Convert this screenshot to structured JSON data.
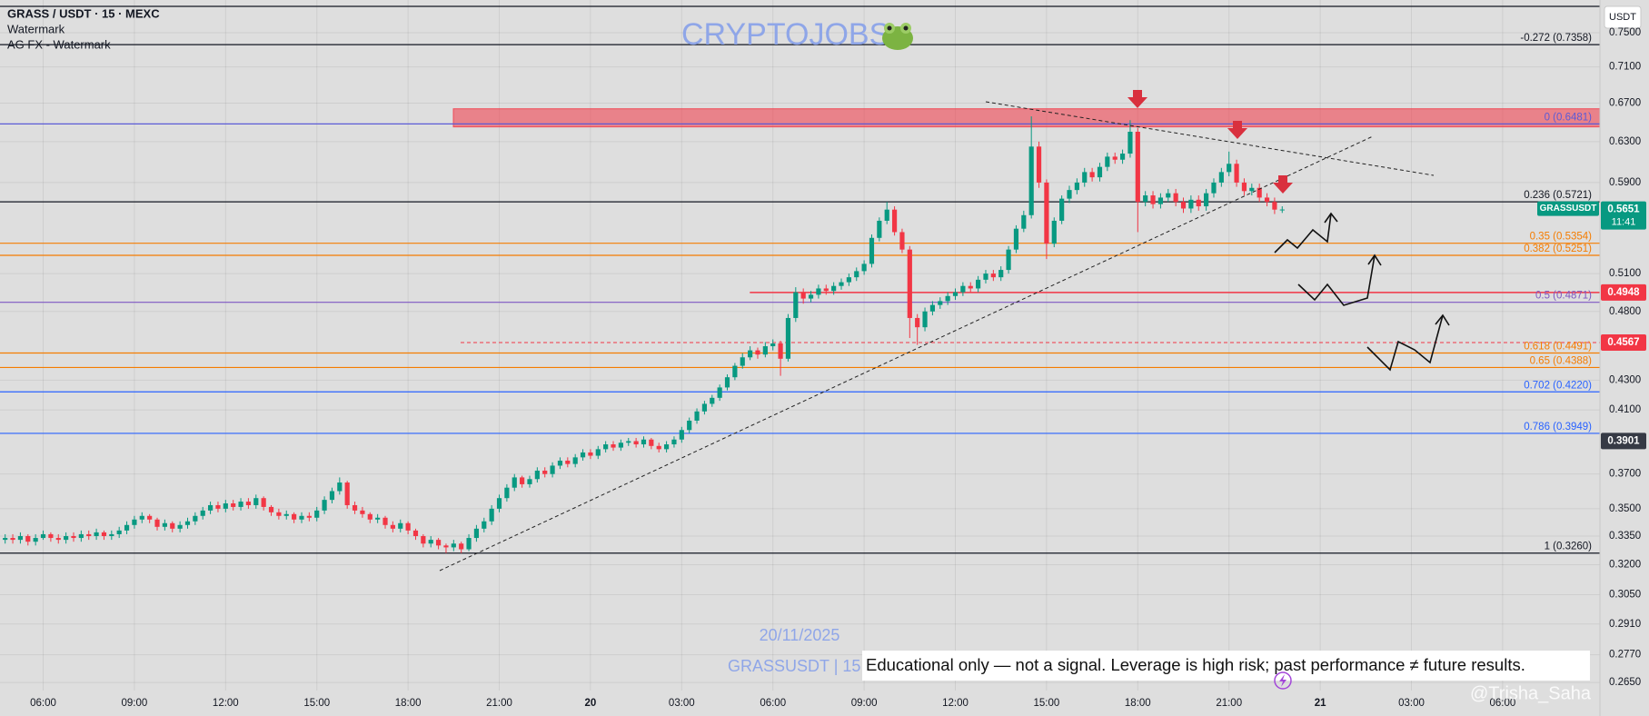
{
  "header": {
    "symbol_line": "GRASS / USDT · 15 · MEXC",
    "indicators": [
      "Watermark",
      "AG FX - Watermark"
    ]
  },
  "currency_button": "USDT",
  "watermark": {
    "brand": "CRYPTOJOBS",
    "date": "20/11/2025",
    "ticker": "GRASSUSDT | 15",
    "handle": "@Trisha_Saha"
  },
  "disclaimer": "Educational only — not a signal. Leverage is high risk; past performance ≠ future results.",
  "chart_data": {
    "type": "candlestick",
    "up_color": "#089981",
    "down_color": "#f23645",
    "x": [
      4.75,
      5,
      5.25,
      5.5,
      5.75,
      6,
      6.25,
      6.5,
      6.75,
      7,
      7.25,
      7.5,
      7.75,
      8,
      8.25,
      8.5,
      8.75,
      9,
      9.25,
      9.5,
      9.75,
      10,
      10.25,
      10.5,
      10.75,
      11,
      11.25,
      11.5,
      11.75,
      12,
      12.25,
      12.5,
      12.75,
      13,
      13.25,
      13.5,
      13.75,
      14,
      14.25,
      14.5,
      14.75,
      15,
      15.25,
      15.5,
      15.75,
      16,
      16.25,
      16.5,
      16.75,
      17,
      17.25,
      17.5,
      17.75,
      18,
      18.25,
      18.5,
      18.75,
      19,
      19.25,
      19.5,
      19.75,
      20,
      20.25,
      20.5,
      20.75,
      21,
      21.25,
      21.5,
      21.75,
      22,
      22.25,
      22.5,
      22.75,
      23,
      23.25,
      23.5,
      23.75,
      24,
      24.25,
      24.5,
      24.75,
      25,
      25.25,
      25.5,
      25.75,
      26,
      26.25,
      26.5,
      26.75,
      27,
      27.25,
      27.5,
      27.75,
      28,
      28.25,
      28.5,
      28.75,
      29,
      29.25,
      29.5,
      29.75,
      30,
      30.25,
      30.5,
      30.75,
      31,
      31.25,
      31.5,
      31.75,
      32,
      32.25,
      32.5,
      32.75,
      33,
      33.25,
      33.5,
      33.75,
      34,
      34.25,
      34.5,
      34.75,
      35,
      35.25,
      35.5,
      35.75,
      36,
      36.25,
      36.5,
      36.75,
      37,
      37.25,
      37.5,
      37.75,
      38,
      38.25,
      38.5,
      38.75,
      39,
      39.25,
      39.5,
      39.75,
      40,
      40.25,
      40.5,
      40.75,
      41,
      41.25,
      41.5,
      41.75,
      42,
      42.25,
      42.5,
      42.75,
      43,
      43.25,
      43.5,
      43.75,
      44,
      44.25,
      44.5,
      44.75,
      45,
      45.25,
      45.5,
      45.75,
      46,
      46.25,
      46.5,
      46.75
    ],
    "open": [
      0.333,
      0.334,
      0.333,
      0.335,
      0.332,
      0.334,
      0.336,
      0.334,
      0.333,
      0.335,
      0.334,
      0.336,
      0.335,
      0.337,
      0.335,
      0.336,
      0.338,
      0.341,
      0.344,
      0.346,
      0.344,
      0.34,
      0.342,
      0.339,
      0.341,
      0.343,
      0.346,
      0.349,
      0.352,
      0.35,
      0.353,
      0.351,
      0.354,
      0.352,
      0.356,
      0.351,
      0.348,
      0.346,
      0.347,
      0.344,
      0.346,
      0.345,
      0.349,
      0.355,
      0.36,
      0.365,
      0.352,
      0.349,
      0.347,
      0.344,
      0.345,
      0.341,
      0.339,
      0.342,
      0.338,
      0.335,
      0.331,
      0.333,
      0.33,
      0.329,
      0.331,
      0.328,
      0.334,
      0.339,
      0.343,
      0.35,
      0.356,
      0.362,
      0.368,
      0.364,
      0.367,
      0.372,
      0.37,
      0.375,
      0.378,
      0.376,
      0.38,
      0.383,
      0.381,
      0.385,
      0.388,
      0.386,
      0.389,
      0.39,
      0.388,
      0.391,
      0.387,
      0.385,
      0.388,
      0.391,
      0.397,
      0.403,
      0.409,
      0.414,
      0.418,
      0.425,
      0.432,
      0.44,
      0.446,
      0.451,
      0.448,
      0.454,
      0.456,
      0.445,
      0.475,
      0.495,
      0.49,
      0.493,
      0.498,
      0.496,
      0.5,
      0.503,
      0.507,
      0.512,
      0.518,
      0.54,
      0.555,
      0.565,
      0.545,
      0.53,
      0.475,
      0.468,
      0.48,
      0.485,
      0.488,
      0.492,
      0.495,
      0.5,
      0.498,
      0.505,
      0.51,
      0.507,
      0.513,
      0.53,
      0.548,
      0.56,
      0.625,
      0.59,
      0.535,
      0.555,
      0.575,
      0.583,
      0.59,
      0.6,
      0.595,
      0.605,
      0.615,
      0.612,
      0.618,
      0.64,
      0.572,
      0.578,
      0.57,
      0.576,
      0.58,
      0.572,
      0.566,
      0.574,
      0.568,
      0.58,
      0.59,
      0.6,
      0.608,
      0.59,
      0.582,
      0.585,
      0.576,
      0.572,
      0.565
    ],
    "high": [
      0.336,
      0.336,
      0.337,
      0.336,
      0.336,
      0.338,
      0.337,
      0.336,
      0.337,
      0.337,
      0.338,
      0.338,
      0.339,
      0.338,
      0.338,
      0.34,
      0.343,
      0.346,
      0.348,
      0.347,
      0.345,
      0.344,
      0.343,
      0.343,
      0.345,
      0.348,
      0.351,
      0.354,
      0.354,
      0.355,
      0.355,
      0.356,
      0.356,
      0.358,
      0.357,
      0.352,
      0.35,
      0.349,
      0.348,
      0.348,
      0.348,
      0.351,
      0.357,
      0.362,
      0.368,
      0.366,
      0.354,
      0.351,
      0.348,
      0.347,
      0.346,
      0.343,
      0.344,
      0.343,
      0.339,
      0.336,
      0.335,
      0.334,
      0.331,
      0.333,
      0.332,
      0.336,
      0.341,
      0.345,
      0.352,
      0.358,
      0.364,
      0.37,
      0.369,
      0.369,
      0.374,
      0.374,
      0.377,
      0.38,
      0.38,
      0.382,
      0.385,
      0.385,
      0.387,
      0.39,
      0.39,
      0.391,
      0.392,
      0.392,
      0.393,
      0.392,
      0.389,
      0.39,
      0.393,
      0.399,
      0.405,
      0.411,
      0.416,
      0.42,
      0.427,
      0.434,
      0.442,
      0.449,
      0.454,
      0.453,
      0.457,
      0.459,
      0.458,
      0.478,
      0.499,
      0.498,
      0.496,
      0.501,
      0.501,
      0.503,
      0.506,
      0.51,
      0.515,
      0.521,
      0.543,
      0.558,
      0.572,
      0.568,
      0.548,
      0.533,
      0.478,
      0.483,
      0.488,
      0.491,
      0.495,
      0.498,
      0.503,
      0.503,
      0.508,
      0.513,
      0.513,
      0.516,
      0.533,
      0.551,
      0.564,
      0.656,
      0.63,
      0.593,
      0.558,
      0.578,
      0.587,
      0.594,
      0.604,
      0.604,
      0.609,
      0.619,
      0.619,
      0.622,
      0.652,
      0.644,
      0.582,
      0.582,
      0.58,
      0.584,
      0.584,
      0.576,
      0.578,
      0.578,
      0.584,
      0.594,
      0.604,
      0.62,
      0.612,
      0.594,
      0.589,
      0.589,
      0.58,
      0.576,
      0.568
    ],
    "low": [
      0.331,
      0.331,
      0.331,
      0.33,
      0.33,
      0.333,
      0.332,
      0.331,
      0.331,
      0.332,
      0.332,
      0.333,
      0.333,
      0.333,
      0.333,
      0.334,
      0.336,
      0.339,
      0.342,
      0.342,
      0.338,
      0.338,
      0.337,
      0.337,
      0.339,
      0.341,
      0.344,
      0.347,
      0.348,
      0.348,
      0.349,
      0.349,
      0.35,
      0.35,
      0.349,
      0.346,
      0.344,
      0.344,
      0.342,
      0.342,
      0.343,
      0.343,
      0.347,
      0.353,
      0.358,
      0.35,
      0.347,
      0.345,
      0.342,
      0.342,
      0.339,
      0.337,
      0.337,
      0.336,
      0.333,
      0.329,
      0.329,
      0.328,
      0.326,
      0.327,
      0.326,
      0.327,
      0.332,
      0.337,
      0.341,
      0.348,
      0.354,
      0.36,
      0.362,
      0.362,
      0.365,
      0.368,
      0.368,
      0.373,
      0.374,
      0.374,
      0.378,
      0.379,
      0.379,
      0.383,
      0.384,
      0.384,
      0.387,
      0.386,
      0.386,
      0.385,
      0.383,
      0.383,
      0.386,
      0.389,
      0.395,
      0.401,
      0.407,
      0.412,
      0.416,
      0.423,
      0.43,
      0.438,
      0.444,
      0.445,
      0.446,
      0.451,
      0.433,
      0.443,
      0.472,
      0.486,
      0.487,
      0.49,
      0.493,
      0.493,
      0.497,
      0.5,
      0.504,
      0.509,
      0.515,
      0.537,
      0.552,
      0.542,
      0.527,
      0.46,
      0.455,
      0.465,
      0.477,
      0.482,
      0.485,
      0.489,
      0.492,
      0.495,
      0.495,
      0.502,
      0.504,
      0.504,
      0.51,
      0.527,
      0.545,
      0.557,
      0.585,
      0.522,
      0.532,
      0.552,
      0.571,
      0.579,
      0.586,
      0.591,
      0.591,
      0.601,
      0.608,
      0.608,
      0.614,
      0.545,
      0.568,
      0.566,
      0.566,
      0.572,
      0.568,
      0.562,
      0.562,
      0.564,
      0.564,
      0.576,
      0.586,
      0.596,
      0.586,
      0.578,
      0.578,
      0.572,
      0.568,
      0.561,
      0.562
    ],
    "close": [
      0.334,
      0.333,
      0.335,
      0.332,
      0.334,
      0.336,
      0.334,
      0.333,
      0.335,
      0.334,
      0.336,
      0.335,
      0.337,
      0.335,
      0.336,
      0.338,
      0.341,
      0.344,
      0.346,
      0.344,
      0.34,
      0.342,
      0.339,
      0.341,
      0.343,
      0.346,
      0.349,
      0.352,
      0.35,
      0.353,
      0.351,
      0.354,
      0.352,
      0.356,
      0.351,
      0.348,
      0.346,
      0.347,
      0.344,
      0.346,
      0.345,
      0.349,
      0.355,
      0.36,
      0.365,
      0.352,
      0.349,
      0.347,
      0.344,
      0.345,
      0.341,
      0.339,
      0.342,
      0.338,
      0.335,
      0.331,
      0.333,
      0.33,
      0.329,
      0.331,
      0.328,
      0.334,
      0.339,
      0.343,
      0.35,
      0.356,
      0.362,
      0.368,
      0.364,
      0.367,
      0.372,
      0.37,
      0.375,
      0.378,
      0.376,
      0.38,
      0.383,
      0.381,
      0.385,
      0.388,
      0.386,
      0.389,
      0.39,
      0.388,
      0.391,
      0.387,
      0.385,
      0.388,
      0.391,
      0.397,
      0.403,
      0.409,
      0.414,
      0.418,
      0.425,
      0.432,
      0.44,
      0.446,
      0.451,
      0.448,
      0.454,
      0.456,
      0.445,
      0.475,
      0.495,
      0.49,
      0.493,
      0.498,
      0.496,
      0.5,
      0.503,
      0.507,
      0.512,
      0.518,
      0.54,
      0.555,
      0.565,
      0.545,
      0.53,
      0.475,
      0.468,
      0.48,
      0.485,
      0.488,
      0.492,
      0.495,
      0.5,
      0.498,
      0.505,
      0.51,
      0.507,
      0.513,
      0.53,
      0.548,
      0.56,
      0.625,
      0.59,
      0.535,
      0.555,
      0.575,
      0.583,
      0.59,
      0.6,
      0.595,
      0.605,
      0.615,
      0.612,
      0.618,
      0.64,
      0.572,
      0.578,
      0.57,
      0.576,
      0.58,
      0.572,
      0.566,
      0.574,
      0.568,
      0.58,
      0.59,
      0.6,
      0.608,
      0.59,
      0.582,
      0.585,
      0.576,
      0.572,
      0.565,
      0.5651
    ],
    "xlim": [
      4.58,
      57.2
    ],
    "xticks": [
      {
        "value": 6,
        "label": "06:00"
      },
      {
        "value": 9,
        "label": "09:00"
      },
      {
        "value": 12,
        "label": "12:00"
      },
      {
        "value": 15,
        "label": "15:00"
      },
      {
        "value": 18,
        "label": "18:00"
      },
      {
        "value": 21,
        "label": "21:00"
      },
      {
        "value": 24,
        "label": "20"
      },
      {
        "value": 27,
        "label": "03:00"
      },
      {
        "value": 30,
        "label": "06:00"
      },
      {
        "value": 33,
        "label": "09:00"
      },
      {
        "value": 36,
        "label": "12:00"
      },
      {
        "value": 39,
        "label": "15:00"
      },
      {
        "value": 42,
        "label": "18:00"
      },
      {
        "value": 45,
        "label": "21:00"
      },
      {
        "value": 48,
        "label": "21"
      },
      {
        "value": 51,
        "label": "03:00"
      },
      {
        "value": 54,
        "label": "06:00"
      }
    ],
    "ylim": [
      0.2616,
      0.7903
    ],
    "log_scale": true,
    "yticks": [
      {
        "value": 0.75,
        "label": "0.7500"
      },
      {
        "value": 0.71,
        "label": "0.7100"
      },
      {
        "value": 0.67,
        "label": "0.6700"
      },
      {
        "value": 0.63,
        "label": "0.6300"
      },
      {
        "value": 0.59,
        "label": "0.5900"
      },
      {
        "value": 0.51,
        "label": "0.5100"
      },
      {
        "value": 0.48,
        "label": "0.4800"
      },
      {
        "value": 0.43,
        "label": "0.4300"
      },
      {
        "value": 0.41,
        "label": "0.4100"
      },
      {
        "value": 0.37,
        "label": "0.3700"
      },
      {
        "value": 0.35,
        "label": "0.3500"
      },
      {
        "value": 0.335,
        "label": "0.3350"
      },
      {
        "value": 0.32,
        "label": "0.3200"
      },
      {
        "value": 0.305,
        "label": "0.3050"
      },
      {
        "value": 0.291,
        "label": "0.2910"
      },
      {
        "value": 0.277,
        "label": "0.2770"
      },
      {
        "value": 0.265,
        "label": "0.2650"
      }
    ],
    "grid": true,
    "zone": {
      "low": 0.645,
      "high": 0.664,
      "start": 19.49,
      "color": "#f23645"
    },
    "fib_levels": [
      {
        "label": "-0.272 (0.7358)",
        "price": 0.7358,
        "color": "#131722"
      },
      {
        "label": "0 (0.6481)",
        "price": 0.6481,
        "color": "#5b5bd6"
      },
      {
        "label": "0.236 (0.5721)",
        "price": 0.5721,
        "color": "#131722"
      },
      {
        "label": "0.35 (0.5354)",
        "price": 0.5354,
        "color": "#f57c00"
      },
      {
        "label": "0.382 (0.5251)",
        "price": 0.5251,
        "color": "#f57c00"
      },
      {
        "label": "0.5 (0.4871)",
        "price": 0.4871,
        "color": "#7e57c2"
      },
      {
        "label": "0.618 (0.4491)",
        "price": 0.4491,
        "color": "#f57c00"
      },
      {
        "label": "0.65 (0.4388)",
        "price": 0.4388,
        "color": "#f57c00"
      },
      {
        "label": "0.702 (0.4220)",
        "price": 0.422,
        "color": "#2962ff"
      },
      {
        "label": "0.786 (0.3949)",
        "price": 0.3949,
        "color": "#2962ff"
      },
      {
        "label": "1 (0.3260)",
        "price": 0.326,
        "color": "#131722"
      }
    ],
    "price_lines": [
      {
        "value": 0.4948,
        "start": 29.24,
        "color": "#f23645",
        "dashed": false
      },
      {
        "value": 0.4567,
        "start": 19.73,
        "color": "#f23645",
        "dashed": true
      },
      {
        "value": 0.3901,
        "color": "#363a45"
      }
    ],
    "last_price": {
      "symbol": "GRASSUSDT",
      "value": 0.5651,
      "countdown": "11:41",
      "color": "#089981"
    }
  }
}
